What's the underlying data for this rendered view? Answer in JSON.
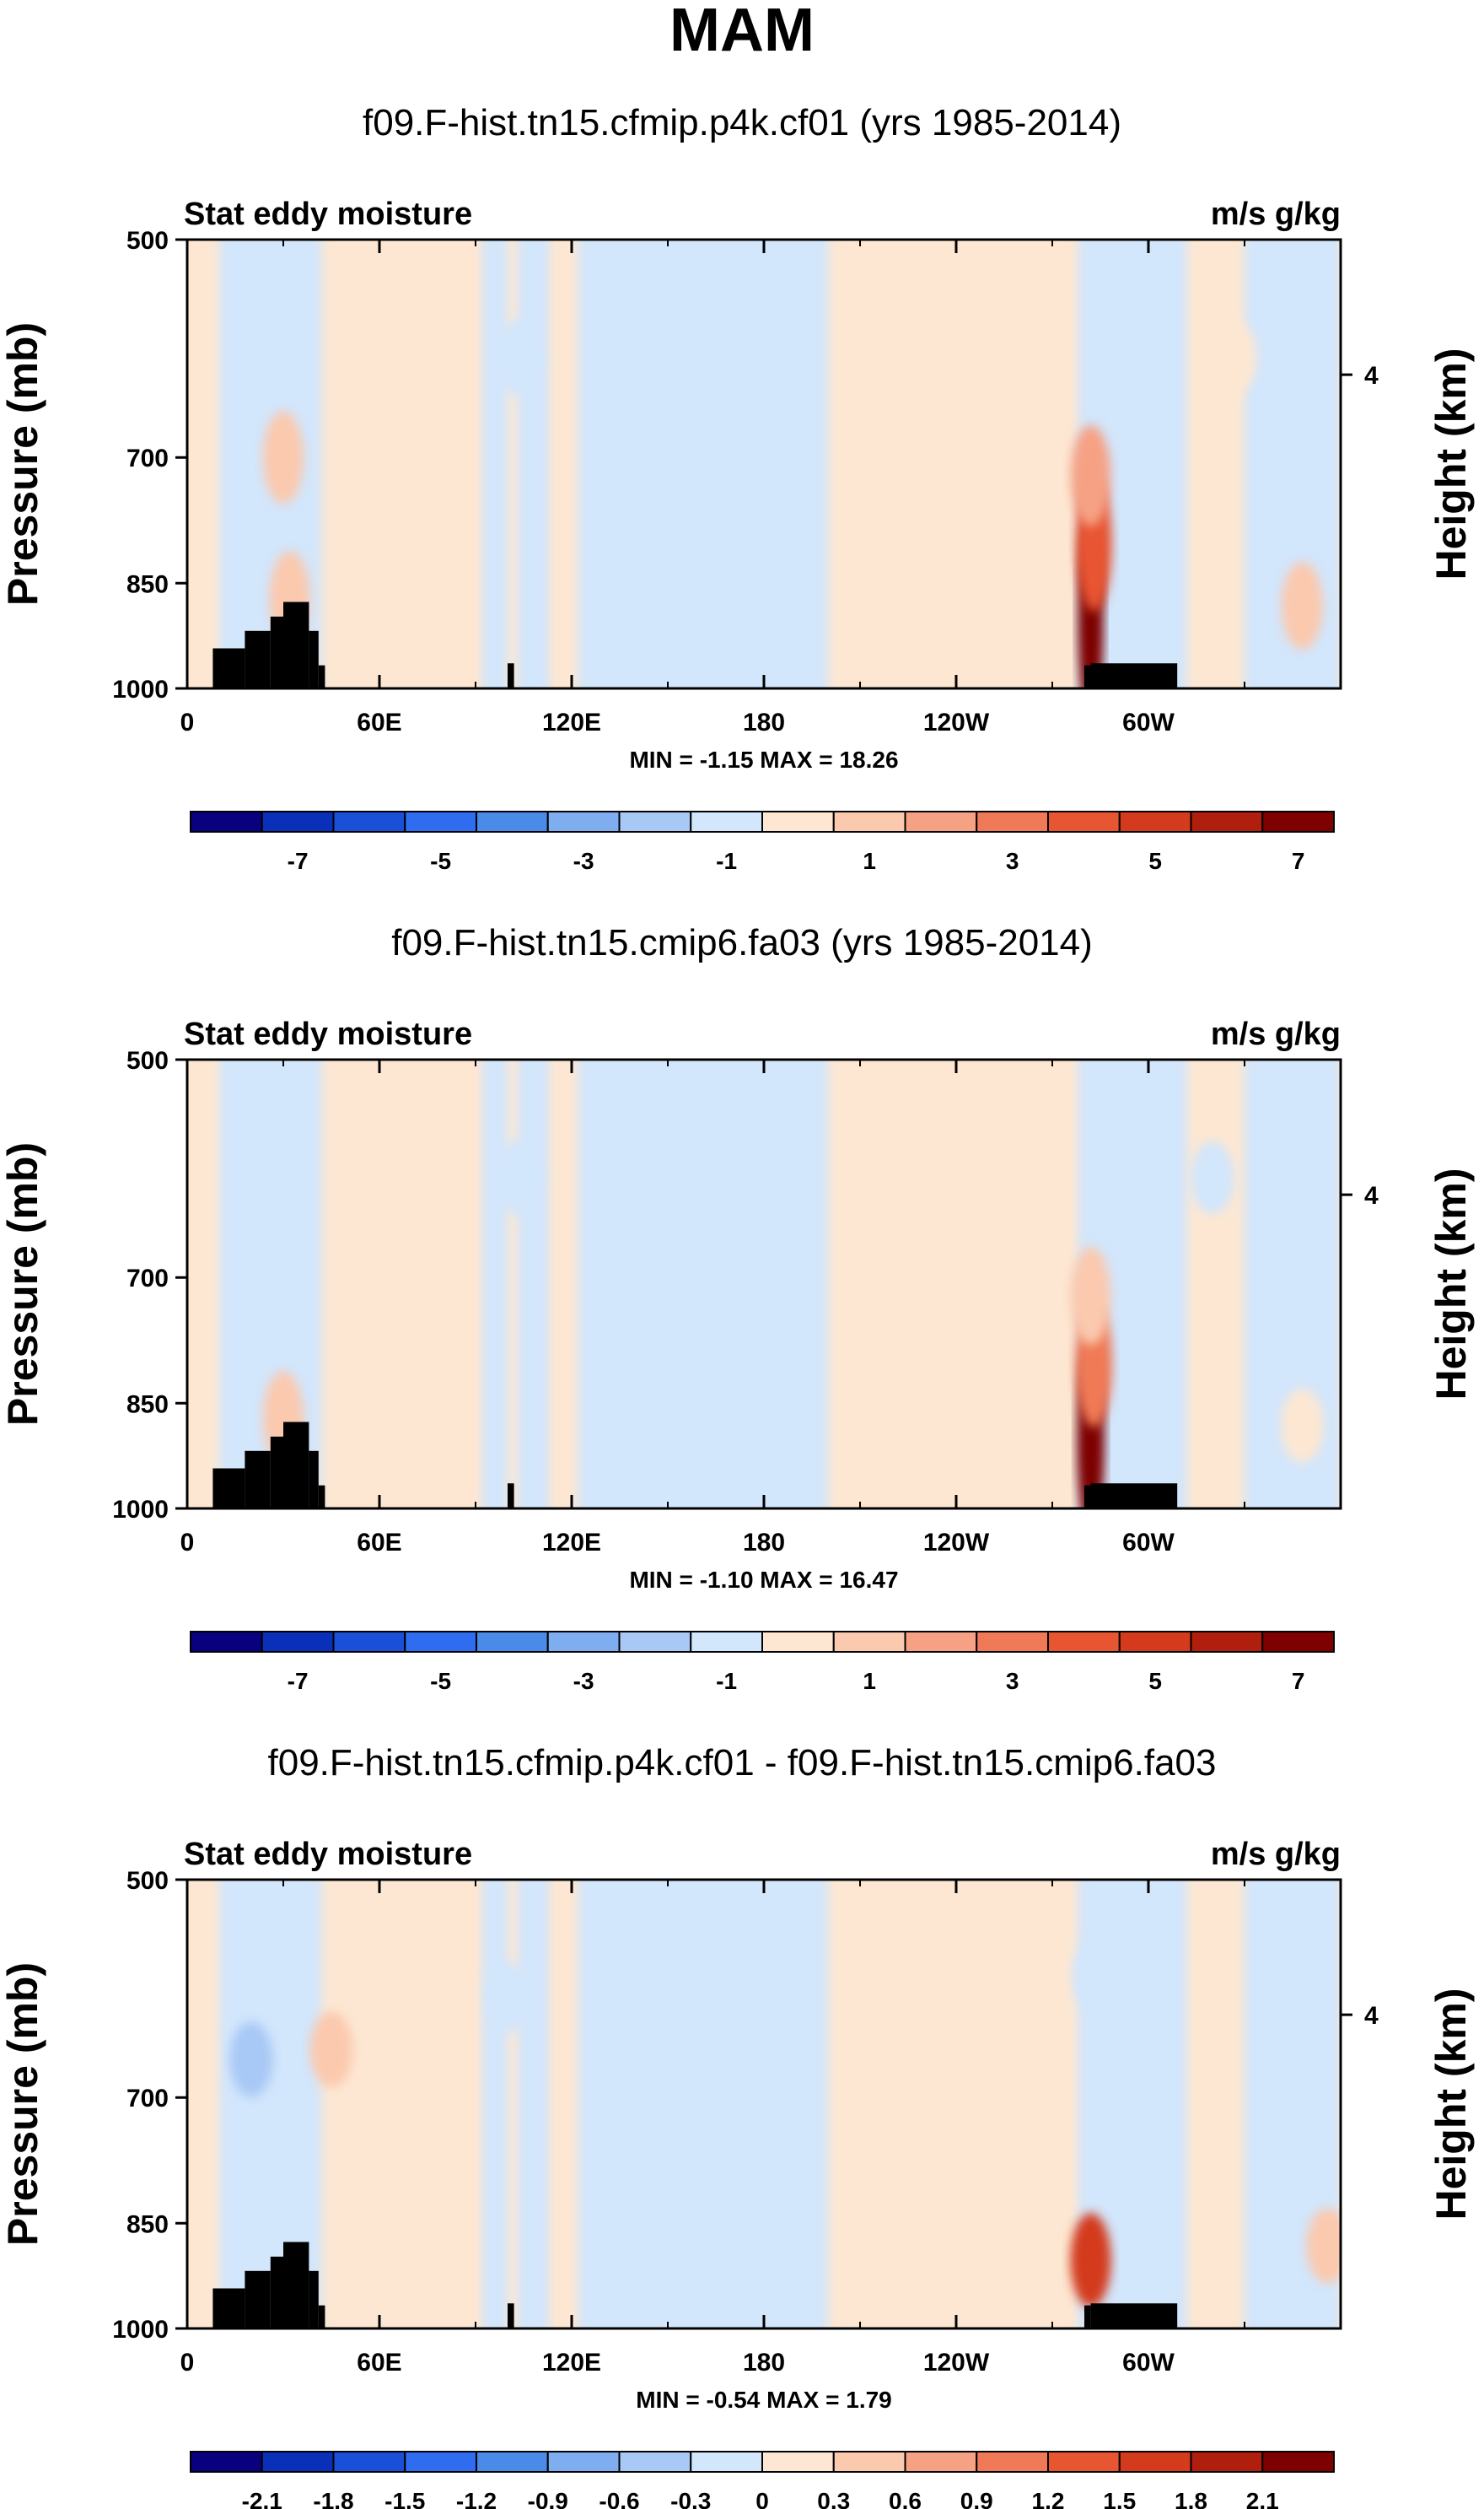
{
  "chart_data": [
    {
      "type": "heatmap",
      "main_title": "MAM",
      "title": "f09.F-hist.tn15.cfmip.p4k.cf01 (yrs 1985-2014)",
      "variable_label": "Stat eddy moisture",
      "units_label": "m/s g/kg",
      "ylabel": "Pressure (mb)",
      "right_ylabel": "Height (km)",
      "yticks": [
        "500",
        "700",
        "850",
        "1000"
      ],
      "right_yticks": [
        "4"
      ],
      "xticks": [
        "0",
        "60E",
        "120E",
        "180",
        "120W",
        "60W"
      ],
      "xlim": [
        0,
        360
      ],
      "ylim": [
        1000,
        500
      ],
      "min_label": "MIN =",
      "min": "-1.15",
      "max_label": "MAX =",
      "max": "18.26",
      "colorbar_labels": [
        "-7",
        "-5",
        "-3",
        "-1",
        "1",
        "3",
        "5",
        "7"
      ],
      "features": [
        {
          "lon": 32,
          "p": 870,
          "value": 1.6
        },
        {
          "lon": 30,
          "p": 700,
          "value": 1.5
        },
        {
          "lon": 103,
          "p": 600,
          "value": -0.5
        },
        {
          "lon": 150,
          "p": 650,
          "value": -0.4
        },
        {
          "lon": 230,
          "p": 600,
          "value": 0.4
        },
        {
          "lon": 282,
          "p": 900,
          "value": 9.0
        },
        {
          "lon": 283,
          "p": 800,
          "value": 4.0
        },
        {
          "lon": 282,
          "p": 720,
          "value": 2.0
        },
        {
          "lon": 327,
          "p": 600,
          "value": 0.3
        },
        {
          "lon": 348,
          "p": 880,
          "value": 1.2
        }
      ]
    },
    {
      "type": "heatmap",
      "title": "f09.F-hist.tn15.cmip6.fa03 (yrs 1985-2014)",
      "variable_label": "Stat eddy moisture",
      "units_label": "m/s g/kg",
      "ylabel": "Pressure (mb)",
      "right_ylabel": "Height (km)",
      "yticks": [
        "500",
        "700",
        "850",
        "1000"
      ],
      "right_yticks": [
        "4"
      ],
      "xticks": [
        "0",
        "60E",
        "120E",
        "180",
        "120W",
        "60W"
      ],
      "xlim": [
        0,
        360
      ],
      "ylim": [
        1000,
        500
      ],
      "min_label": "MIN =",
      "min": "-1.10",
      "max_label": "MAX =",
      "max": "16.47",
      "colorbar_labels": [
        "-7",
        "-5",
        "-3",
        "-1",
        "1",
        "3",
        "5",
        "7"
      ],
      "features": [
        {
          "lon": 30,
          "p": 870,
          "value": 1.6
        },
        {
          "lon": 103,
          "p": 600,
          "value": -0.5
        },
        {
          "lon": 150,
          "p": 600,
          "value": -0.4
        },
        {
          "lon": 230,
          "p": 600,
          "value": 0.4
        },
        {
          "lon": 282,
          "p": 900,
          "value": 8.0
        },
        {
          "lon": 283,
          "p": 800,
          "value": 3.5
        },
        {
          "lon": 282,
          "p": 720,
          "value": 1.8
        },
        {
          "lon": 320,
          "p": 600,
          "value": -0.3
        },
        {
          "lon": 348,
          "p": 880,
          "value": 0.4
        }
      ]
    },
    {
      "type": "heatmap",
      "title": "f09.F-hist.tn15.cfmip.p4k.cf01 - f09.F-hist.tn15.cmip6.fa03",
      "variable_label": "Stat eddy moisture",
      "units_label": "m/s g/kg",
      "ylabel": "Pressure (mb)",
      "right_ylabel": "Height (km)",
      "yticks": [
        "500",
        "700",
        "850",
        "1000"
      ],
      "right_yticks": [
        "4"
      ],
      "xticks": [
        "0",
        "60E",
        "120E",
        "180",
        "120W",
        "60W"
      ],
      "xlim": [
        0,
        360
      ],
      "ylim": [
        1000,
        500
      ],
      "min_label": "MIN =",
      "min": "-0.54",
      "max_label": "MAX =",
      "max": "1.79",
      "colorbar_labels": [
        "-2.1",
        "-1.8",
        "-1.5",
        "-1.2",
        "-0.9",
        "-0.6",
        "-0.3",
        "0",
        "0.3",
        "0.6",
        "0.9",
        "1.2",
        "1.5",
        "1.8",
        "2.1"
      ],
      "features": [
        {
          "lon": 20,
          "p": 660,
          "value": -0.45
        },
        {
          "lon": 45,
          "p": 650,
          "value": 0.5
        },
        {
          "lon": 100,
          "p": 600,
          "value": -0.2
        },
        {
          "lon": 230,
          "p": 620,
          "value": 0.2
        },
        {
          "lon": 283,
          "p": 580,
          "value": -0.3
        },
        {
          "lon": 282,
          "p": 900,
          "value": 1.6
        },
        {
          "lon": 356,
          "p": 880,
          "value": 0.45
        }
      ]
    }
  ]
}
